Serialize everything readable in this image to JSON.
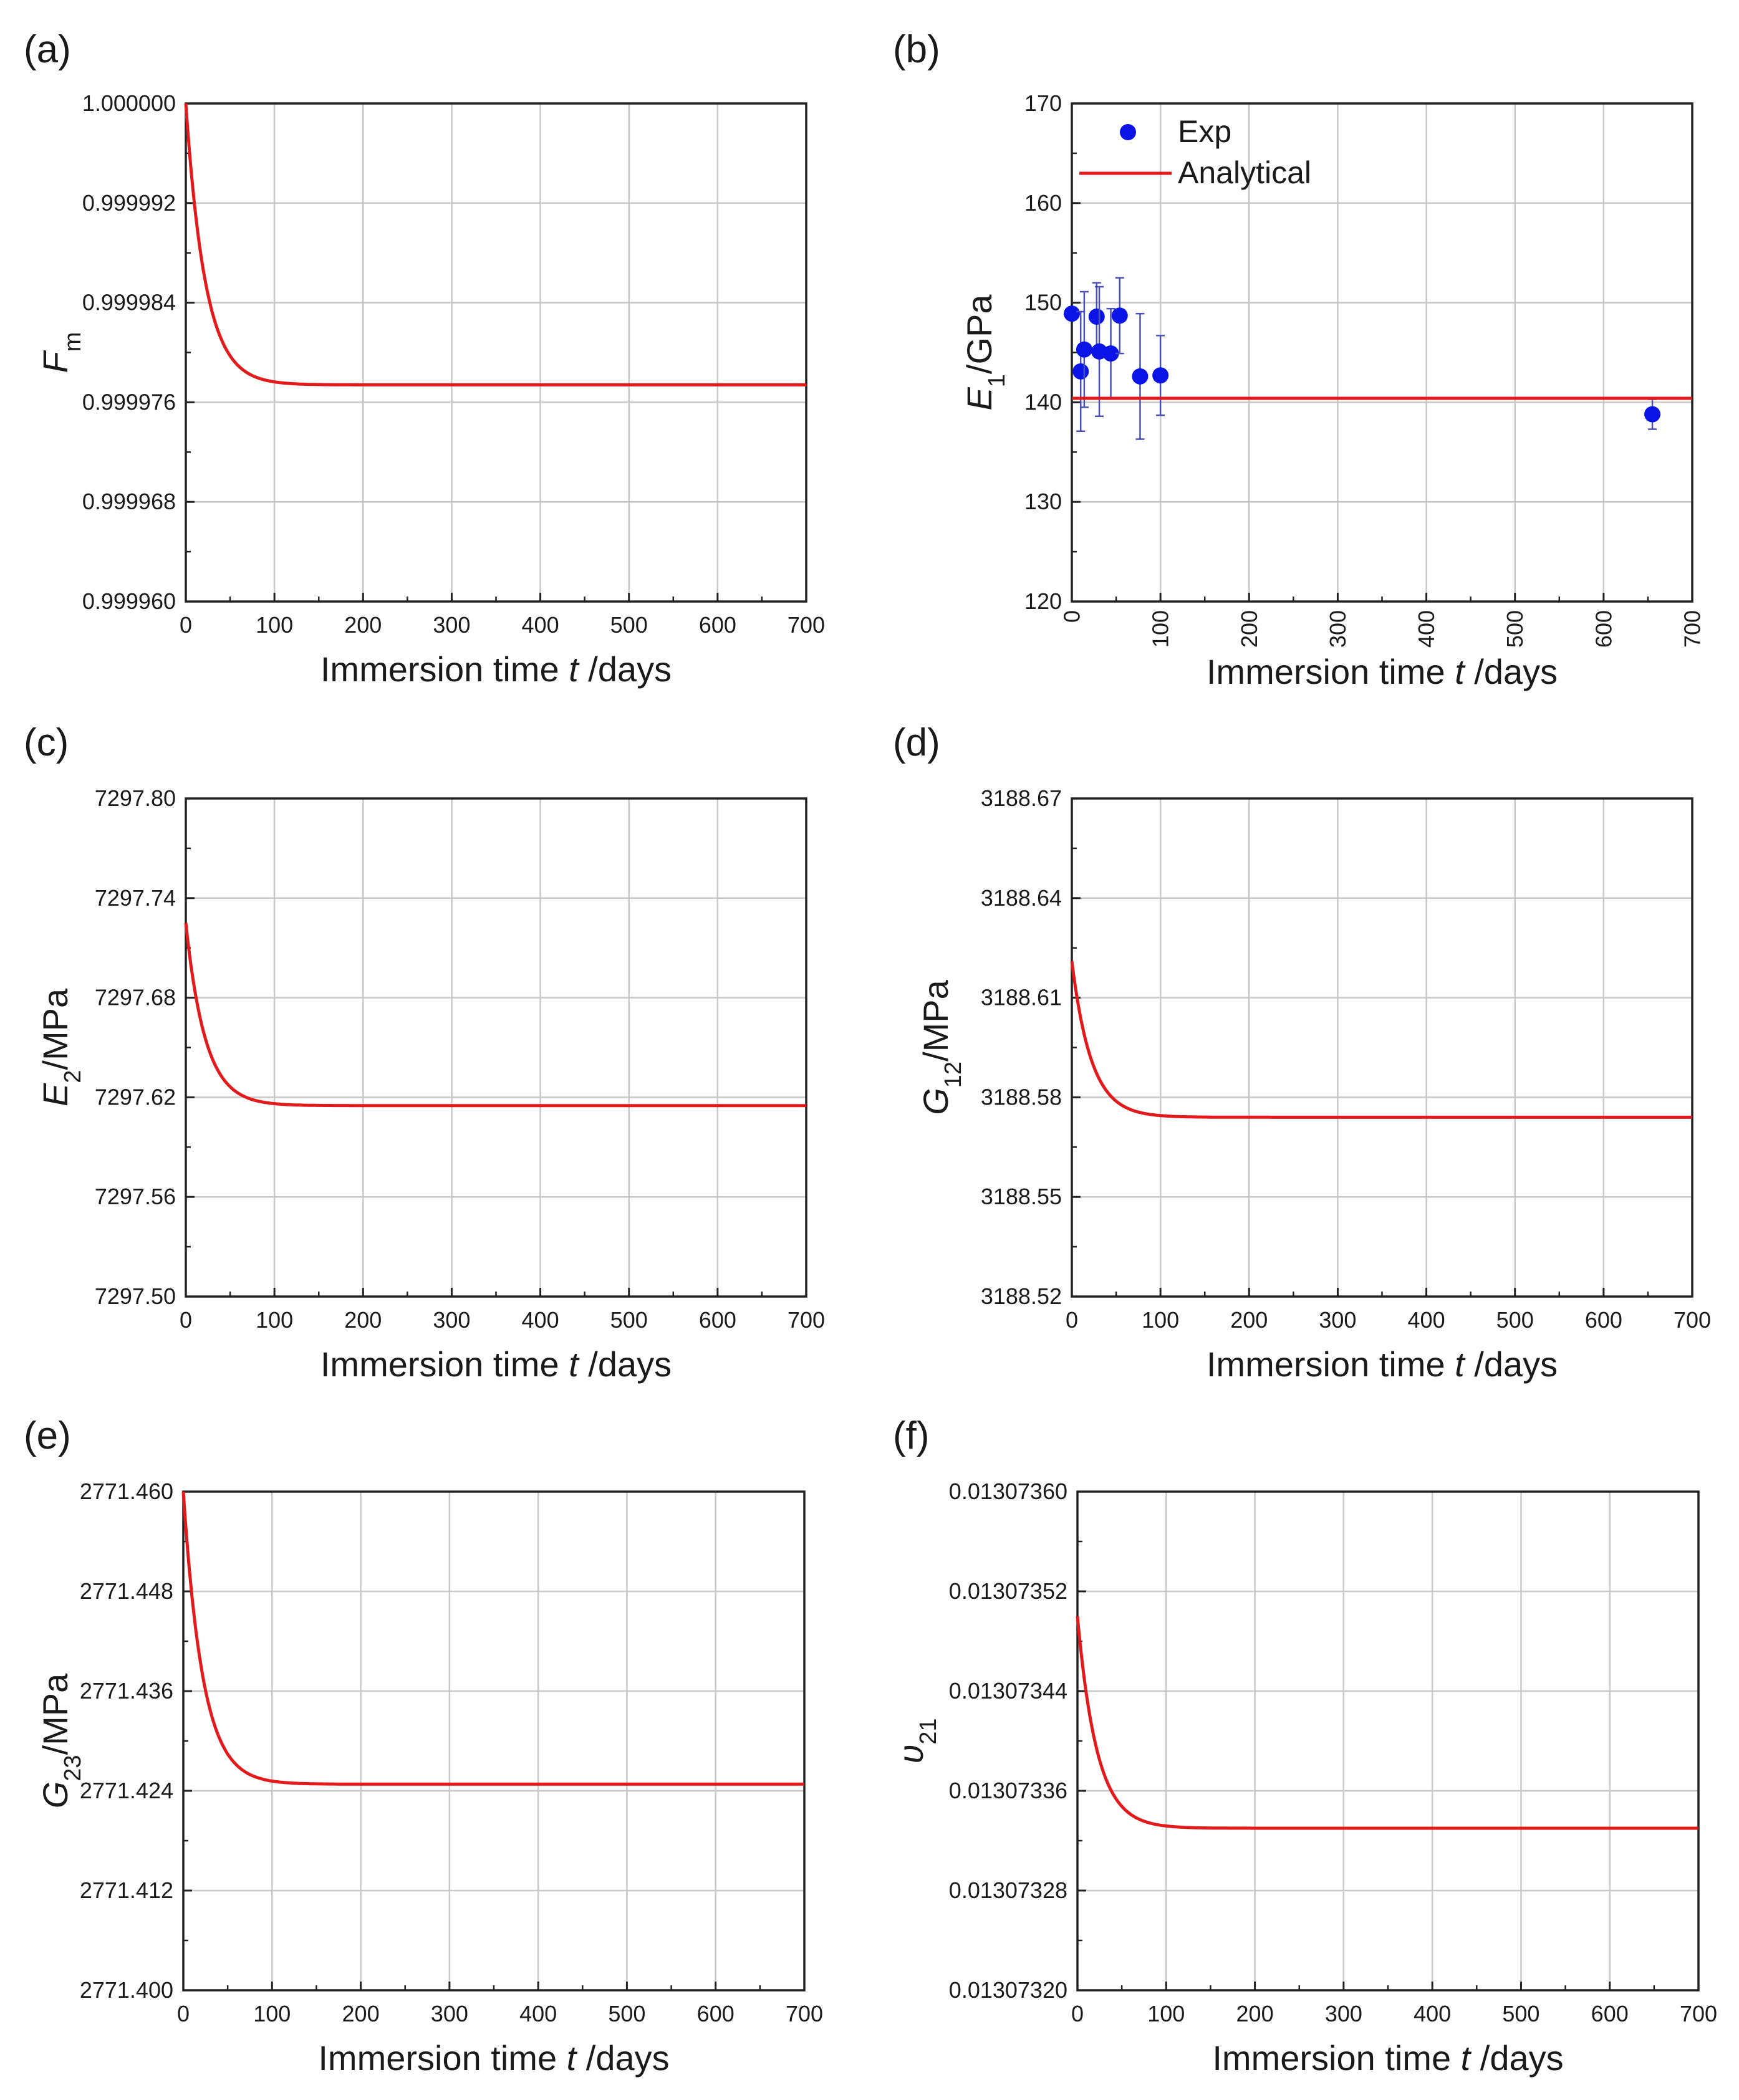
{
  "chart_data": [
    {
      "panel": "(a)",
      "type": "line",
      "xlabel": {
        "pre": "Immersion time ",
        "var": "t",
        "post": " /days"
      },
      "ylabel": {
        "main": "F",
        "sub": "m",
        "post": ""
      },
      "xlim": [
        0,
        700
      ],
      "ylim": [
        0.99996,
        1.0
      ],
      "xticks": [
        0,
        100,
        200,
        300,
        400,
        500,
        600,
        700
      ],
      "xtick_labels": [
        "0",
        "100",
        "200",
        "300",
        "400",
        "500",
        "600",
        "700"
      ],
      "yticks": [
        0.99996,
        0.999968,
        0.999976,
        0.999984,
        0.999992,
        1.0
      ],
      "ytick_labels": [
        "0.999960",
        "0.999968",
        "0.999976",
        "0.999984",
        "0.999992",
        "1.000000"
      ],
      "series": [
        {
          "values_model": {
            "start": 1.0,
            "end": 0.9999774,
            "tau": 22
          },
          "color": "#e31a1c"
        }
      ]
    },
    {
      "panel": "(b)",
      "type": "scatter",
      "xlabel": {
        "pre": "Immersion time ",
        "var": "t",
        "post": " /days"
      },
      "ylabel": {
        "main": "E",
        "sub": "1",
        "post": "/GPa"
      },
      "xlim": [
        0,
        700
      ],
      "ylim": [
        120,
        170
      ],
      "rotated_xticks": true,
      "xticks": [
        0,
        100,
        200,
        300,
        400,
        500,
        600,
        700
      ],
      "xtick_labels": [
        "0",
        "100",
        "200",
        "300",
        "400",
        "500",
        "600",
        "700"
      ],
      "yticks": [
        120,
        130,
        140,
        150,
        160,
        170
      ],
      "ytick_labels": [
        "120",
        "130",
        "140",
        "150",
        "160",
        "170"
      ],
      "legend": {
        "placement": "top-left",
        "entries": [
          "Exp",
          "Analytical"
        ]
      },
      "series": [
        {
          "name": "Exp",
          "color": "#0a14e6",
          "points": [
            {
              "x": 0,
              "y": 148.9,
              "err": 0
            },
            {
              "x": 10,
              "y": 143.1,
              "err": 6.0
            },
            {
              "x": 14,
              "y": 145.3,
              "err": 5.8
            },
            {
              "x": 28,
              "y": 148.6,
              "err": 3.4
            },
            {
              "x": 31,
              "y": 145.1,
              "err": 6.5
            },
            {
              "x": 44,
              "y": 144.9,
              "err": 4.5
            },
            {
              "x": 54,
              "y": 148.7,
              "err": 3.8
            },
            {
              "x": 77,
              "y": 142.6,
              "err": 6.3
            },
            {
              "x": 100,
              "y": 142.7,
              "err": 4.0
            },
            {
              "x": 655,
              "y": 138.8,
              "err": 1.5
            }
          ]
        },
        {
          "name": "Analytical",
          "color": "#e31a1c",
          "constant": 140.4
        }
      ]
    },
    {
      "panel": "(c)",
      "type": "line",
      "xlabel": {
        "pre": "Immersion time ",
        "var": "t",
        "post": " /days"
      },
      "ylabel": {
        "main": "E",
        "sub": "2",
        "post": "/MPa"
      },
      "xlim": [
        0,
        700
      ],
      "ylim": [
        7297.5,
        7297.8
      ],
      "xticks": [
        0,
        100,
        200,
        300,
        400,
        500,
        600,
        700
      ],
      "xtick_labels": [
        "0",
        "100",
        "200",
        "300",
        "400",
        "500",
        "600",
        "700"
      ],
      "yticks": [
        7297.5,
        7297.56,
        7297.62,
        7297.68,
        7297.74,
        7297.8
      ],
      "ytick_labels": [
        "7297.50",
        "7297.56",
        "7297.62",
        "7297.68",
        "7297.74",
        "7297.80"
      ],
      "series": [
        {
          "values_model": {
            "start": 7297.725,
            "end": 7297.615,
            "tau": 22
          },
          "color": "#e31a1c"
        }
      ]
    },
    {
      "panel": "(d)",
      "type": "line",
      "xlabel": {
        "pre": "Immersion time ",
        "var": "t",
        "post": " /days"
      },
      "ylabel": {
        "main": "G",
        "sub": "12",
        "post": "/MPa"
      },
      "xlim": [
        0,
        700
      ],
      "ylim": [
        3188.52,
        3188.67
      ],
      "xticks": [
        0,
        100,
        200,
        300,
        400,
        500,
        600,
        700
      ],
      "xtick_labels": [
        "0",
        "100",
        "200",
        "300",
        "400",
        "500",
        "600",
        "700"
      ],
      "yticks": [
        3188.52,
        3188.55,
        3188.58,
        3188.61,
        3188.64,
        3188.67
      ],
      "ytick_labels": [
        "3188.52",
        "3188.55",
        "3188.58",
        "3188.61",
        "3188.64",
        "3188.67"
      ],
      "series": [
        {
          "values_model": {
            "start": 3188.621,
            "end": 3188.574,
            "tau": 22
          },
          "color": "#e31a1c"
        }
      ]
    },
    {
      "panel": "(e)",
      "type": "line",
      "xlabel": {
        "pre": "Immersion time ",
        "var": "t",
        "post": " /days"
      },
      "ylabel": {
        "main": "G",
        "sub": "23",
        "post": "/MPa"
      },
      "xlim": [
        0,
        700
      ],
      "ylim": [
        2771.4,
        2771.46
      ],
      "xticks": [
        0,
        100,
        200,
        300,
        400,
        500,
        600,
        700
      ],
      "xtick_labels": [
        "0",
        "100",
        "200",
        "300",
        "400",
        "500",
        "600",
        "700"
      ],
      "yticks": [
        2771.4,
        2771.412,
        2771.424,
        2771.436,
        2771.448,
        2771.46
      ],
      "ytick_labels": [
        "2771.400",
        "2771.412",
        "2771.424",
        "2771.436",
        "2771.448",
        "2771.460"
      ],
      "series": [
        {
          "values_model": {
            "start": 2771.46,
            "end": 2771.4248,
            "tau": 22
          },
          "color": "#e31a1c"
        }
      ]
    },
    {
      "panel": "(f)",
      "type": "line",
      "xlabel": {
        "pre": "Immersion time ",
        "var": "t",
        "post": " /days"
      },
      "ylabel": {
        "main": "υ",
        "sub": "21",
        "post": ""
      },
      "xlim": [
        0,
        700
      ],
      "ylim": [
        0.0130732,
        0.0130736
      ],
      "xticks": [
        0,
        100,
        200,
        300,
        400,
        500,
        600,
        700
      ],
      "xtick_labels": [
        "0",
        "100",
        "200",
        "300",
        "400",
        "500",
        "600",
        "700"
      ],
      "yticks": [
        0.0130732,
        0.01307328,
        0.01307336,
        0.01307344,
        0.01307352,
        0.0130736
      ],
      "ytick_labels": [
        "0.01307320",
        "0.01307328",
        "0.01307336",
        "0.01307344",
        "0.01307352",
        "0.01307360"
      ],
      "series": [
        {
          "values_model": {
            "start": 0.0130735,
            "end": 0.01307333,
            "tau": 22
          },
          "color": "#e31a1c"
        }
      ]
    }
  ]
}
